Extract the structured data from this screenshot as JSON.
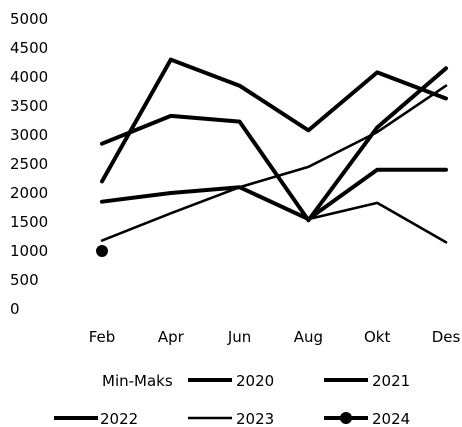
{
  "chart_data": {
    "type": "line",
    "title": "",
    "xlabel": "",
    "ylabel": "",
    "categories": [
      "Feb",
      "Apr",
      "Jun",
      "Aug",
      "Okt",
      "Des"
    ],
    "ylim": [
      0,
      5000
    ],
    "yticks": [
      "0",
      "500",
      "1000",
      "1500",
      "2000",
      "2500",
      "3000",
      "3500",
      "4000",
      "4500",
      "5000"
    ],
    "grid": false,
    "legend_position": "bottom",
    "legend": {
      "range_label": "Min-Maks"
    },
    "series": [
      {
        "name": "2020",
        "values": [
          1850,
          2000,
          2100,
          1550,
          2400,
          2400
        ],
        "color": "#000000",
        "weight": "heavy"
      },
      {
        "name": "2021",
        "values": [
          2200,
          4300,
          3850,
          3080,
          4080,
          3630
        ],
        "color": "#000000",
        "weight": "heavy"
      },
      {
        "name": "2022",
        "values": [
          2850,
          3330,
          3230,
          1530,
          3130,
          4150
        ],
        "color": "#000000",
        "weight": "heavy"
      },
      {
        "name": "2023",
        "values": [
          1180,
          1650,
          2100,
          2450,
          3050,
          3850
        ],
        "color": "#000000",
        "weight": "light"
      },
      {
        "name": "2024",
        "values": [
          1000,
          null,
          null,
          null,
          null,
          null
        ],
        "color": "#000000",
        "weight": "marker"
      }
    ],
    "unlabeled_series": [
      {
        "values": [
          1850,
          2000,
          2100,
          1550,
          1830,
          1150
        ],
        "color": "#000000",
        "weight": "light"
      }
    ]
  }
}
